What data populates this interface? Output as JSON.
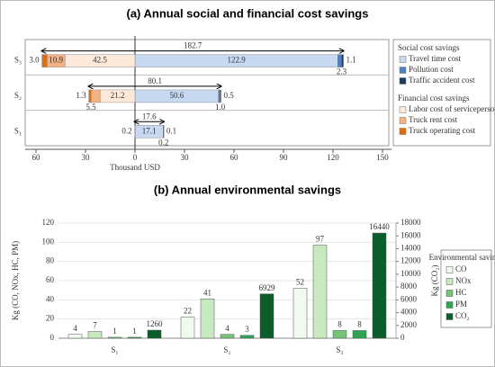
{
  "chart_data": [
    {
      "type": "bar",
      "orientation": "horizontal",
      "stacked": true,
      "title": "(a) Annual social and financial cost savings",
      "xlabel": "Thousand USD",
      "categories": [
        "S₃",
        "S₂",
        "S₁"
      ],
      "totals": [
        182.7,
        80.1,
        17.6
      ],
      "xlim": [
        -60,
        150
      ],
      "xticks": [
        {
          "value": -60,
          "label": "60"
        },
        {
          "value": -30,
          "label": "30"
        },
        0,
        30,
        60,
        90,
        120,
        150
      ],
      "series_groups": [
        {
          "title": "Social cost savings",
          "series": [
            {
              "name": "Travel time cost",
              "color": "#c6d9f1",
              "values": [
                122.9,
                50.6,
                17.1
              ]
            },
            {
              "name": "Pollution cost",
              "color": "#4f81bd",
              "values": [
                2.3,
                1.0,
                0.2
              ],
              "value_labels": [
                "2.3",
                "1.0",
                "0.2"
              ]
            },
            {
              "name": "Traffic accident cost",
              "color": "#1f3864",
              "values": [
                1.1,
                0.5,
                0.1
              ]
            }
          ]
        },
        {
          "title": "Financial cost savings",
          "series": [
            {
              "name": "Labor cost of serviceperson",
              "color": "#fde9d9",
              "values": [
                -42.5,
                -21.2,
                -0.2
              ],
              "value_labels": [
                "42.5",
                "21.2",
                "0.2"
              ]
            },
            {
              "name": "Truck rent cost",
              "color": "#f4b183",
              "values": [
                -10.9,
                -5.5,
                null
              ],
              "value_labels": [
                "10.9",
                "5.5",
                null
              ]
            },
            {
              "name": "Truck operating cost",
              "color": "#e46c0a",
              "values": [
                -3.0,
                -1.3,
                null
              ],
              "value_labels": [
                "3.0",
                "1.3",
                null
              ]
            }
          ]
        }
      ]
    },
    {
      "type": "bar",
      "title": "(b) Annual environmental savings",
      "ylabel": "Kg (CO, NOx, HC, PM)",
      "y2label": "Kg (CO₂)",
      "legend_title": "Environmental savings",
      "categories": [
        "S₁",
        "S₂",
        "S₃"
      ],
      "ylim": [
        0,
        120
      ],
      "yticks": [
        0,
        20,
        40,
        60,
        80,
        100,
        120
      ],
      "y2lim": [
        0,
        18000
      ],
      "y2ticks": [
        0,
        2000,
        4000,
        6000,
        8000,
        10000,
        12000,
        14000,
        16000,
        18000
      ],
      "series": [
        {
          "name": "CO",
          "color": "#f1faee",
          "values": [
            4,
            22,
            52
          ]
        },
        {
          "name": "NOx",
          "color": "#c7e9c0",
          "values": [
            7,
            41,
            97
          ]
        },
        {
          "name": "HC",
          "color": "#74c476",
          "values": [
            1,
            4,
            8
          ]
        },
        {
          "name": "PM",
          "color": "#31a354",
          "values": [
            1,
            3,
            8
          ]
        },
        {
          "name": "CO₂",
          "color": "#0b5d2a",
          "values": [
            1260,
            6929,
            16440
          ],
          "axis": "y2"
        }
      ]
    }
  ]
}
